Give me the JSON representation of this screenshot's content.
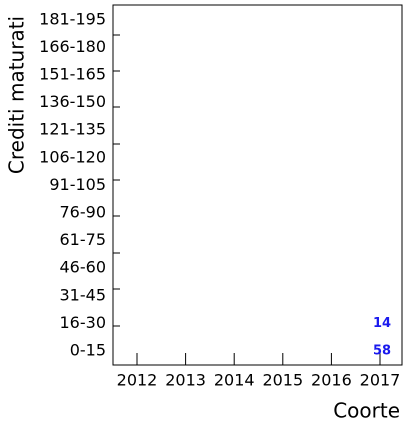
{
  "chart_data": {
    "type": "label-grid",
    "x_label": "Coorte",
    "y_label": "Crediti maturati",
    "x_categories": [
      "2012",
      "2013",
      "2014",
      "2015",
      "2016",
      "2017"
    ],
    "y_categories": [
      "0-15",
      "16-30",
      "31-45",
      "46-60",
      "61-75",
      "76-90",
      "91-105",
      "106-120",
      "121-135",
      "136-150",
      "151-165",
      "166-180",
      "181-195"
    ],
    "points": [
      {
        "x": "2017",
        "y": "16-30",
        "value": 14
      },
      {
        "x": "2017",
        "y": "0-15",
        "value": 58
      }
    ],
    "color": "#1a1aee"
  }
}
